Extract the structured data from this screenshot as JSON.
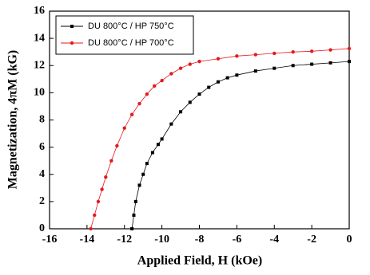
{
  "chart_data": {
    "type": "line",
    "x_label": "Applied Field, H (kOe)",
    "y_label": "Magnetization, 4πM (kG)",
    "xlim": [
      -16,
      0
    ],
    "ylim": [
      0,
      16
    ],
    "xticks": [
      -16,
      -14,
      -12,
      -10,
      -8,
      -6,
      -4,
      -2,
      0
    ],
    "yticks": [
      0,
      2,
      4,
      6,
      8,
      10,
      12,
      14,
      16
    ],
    "legend": "upper left",
    "series": [
      {
        "name": "DU 800°C / HP 750°C",
        "color": "#000000",
        "marker": "square",
        "x": [
          -11.6,
          -11.5,
          -11.4,
          -11.2,
          -11.0,
          -10.8,
          -10.5,
          -10.2,
          -10.0,
          -9.5,
          -9.0,
          -8.5,
          -8.0,
          -7.5,
          -7.0,
          -6.5,
          -6.0,
          -5.0,
          -4.0,
          -3.0,
          -2.0,
          -1.0,
          0
        ],
        "values": [
          0,
          1.0,
          2.0,
          3.2,
          4.0,
          4.8,
          5.6,
          6.2,
          6.6,
          7.7,
          8.6,
          9.3,
          9.9,
          10.4,
          10.8,
          11.1,
          11.3,
          11.6,
          11.8,
          12.0,
          12.1,
          12.2,
          12.3
        ]
      },
      {
        "name": "DU 800°C / HP 700°C",
        "color": "#e41a1c",
        "marker": "circle",
        "x": [
          -13.8,
          -13.6,
          -13.4,
          -13.2,
          -13.0,
          -12.7,
          -12.4,
          -12.0,
          -11.6,
          -11.2,
          -10.8,
          -10.4,
          -10.0,
          -9.5,
          -9.0,
          -8.5,
          -8.0,
          -7.0,
          -6.0,
          -5.0,
          -4.0,
          -3.0,
          -2.0,
          -1.0,
          0
        ],
        "values": [
          0,
          1.0,
          2.0,
          2.9,
          3.8,
          5.0,
          6.1,
          7.4,
          8.4,
          9.2,
          9.9,
          10.5,
          10.9,
          11.4,
          11.8,
          12.1,
          12.3,
          12.5,
          12.7,
          12.8,
          12.9,
          13.0,
          13.05,
          13.15,
          13.25
        ]
      }
    ]
  }
}
